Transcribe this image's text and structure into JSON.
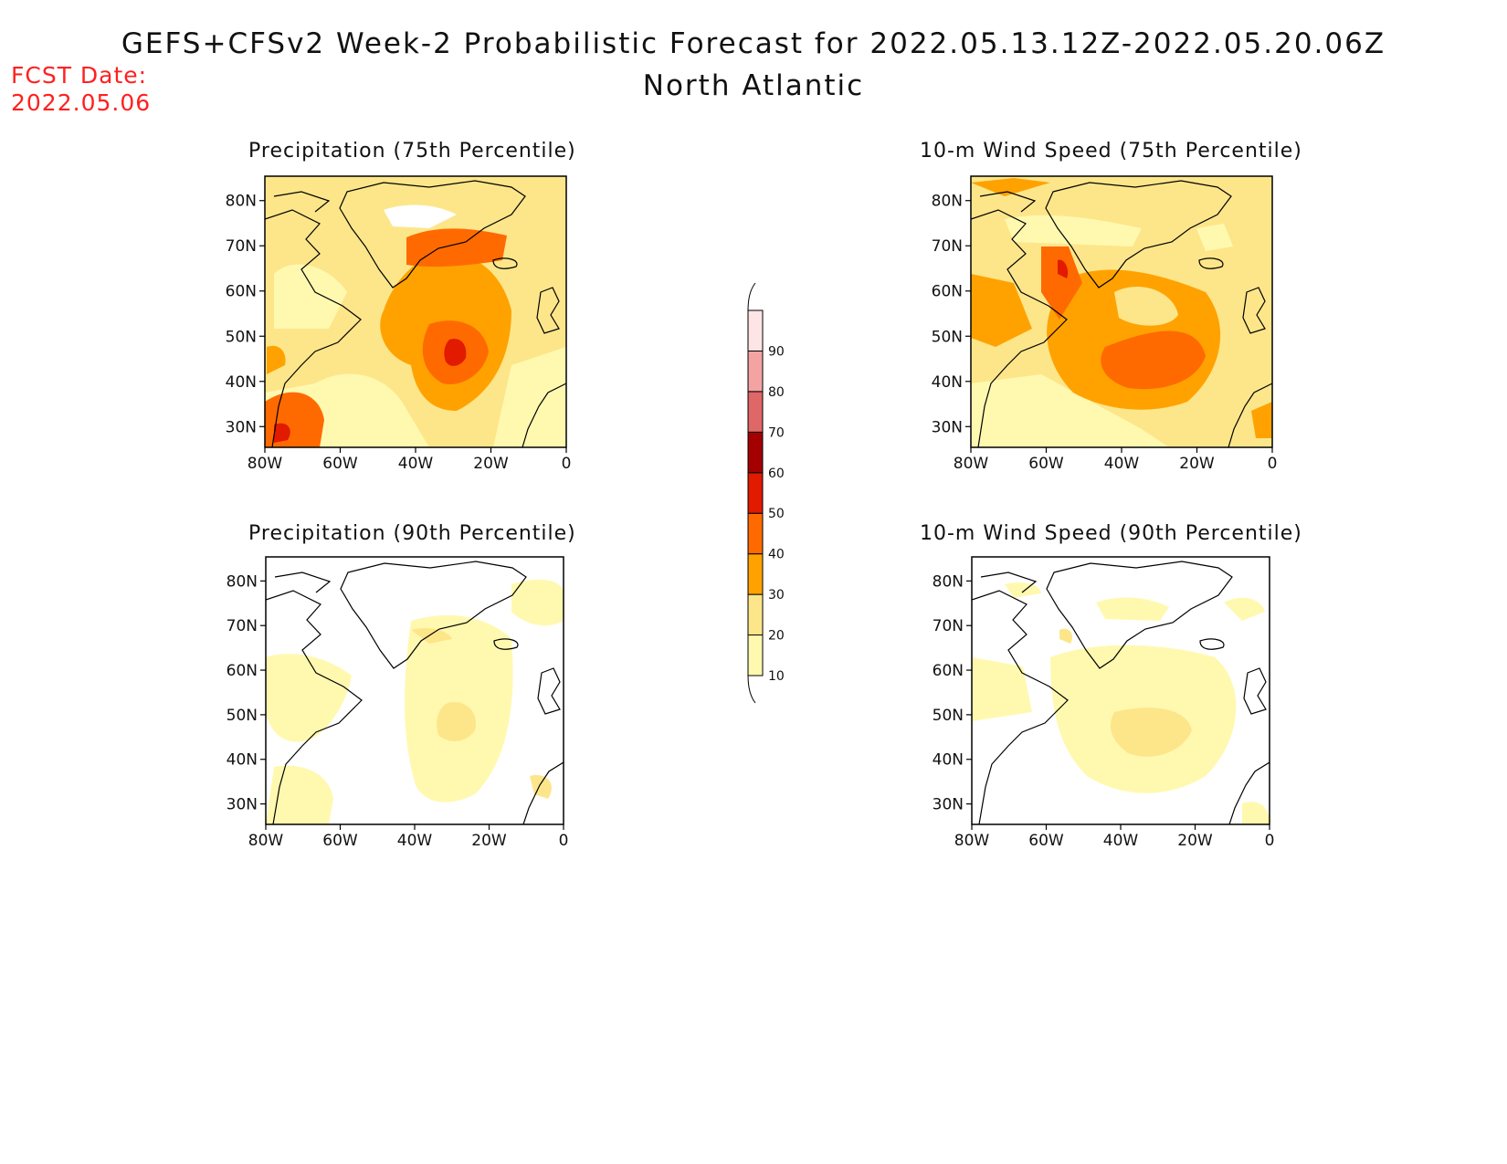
{
  "header": {
    "title": "GEFS+CFSv2 Week-2 Probabilistic Forecast for 2022.05.13.12Z-2022.05.20.06Z",
    "region": "North Atlantic",
    "fcst_label": "FCST Date:",
    "fcst_date": "2022.05.06"
  },
  "panels": [
    {
      "title": "Precipitation (75th Percentile)"
    },
    {
      "title": "10-m Wind Speed (75th Percentile)"
    },
    {
      "title": "Precipitation (90th Percentile)"
    },
    {
      "title": "10-m Wind Speed (90th Percentile)"
    }
  ],
  "axes": {
    "lat_labels": [
      "80N",
      "70N",
      "60N",
      "50N",
      "40N",
      "30N"
    ],
    "lon_labels": [
      "80W",
      "60W",
      "40W",
      "20W",
      "0"
    ]
  },
  "colorbar": {
    "levels": [
      "10",
      "20",
      "30",
      "40",
      "50",
      "60",
      "70",
      "80",
      "90"
    ],
    "colors": [
      "#fff9b0",
      "#fde68a",
      "#ffa200",
      "#ff6a00",
      "#e11a00",
      "#a50000",
      "#e06767",
      "#f4a3a3",
      "#fde5e5"
    ]
  }
}
